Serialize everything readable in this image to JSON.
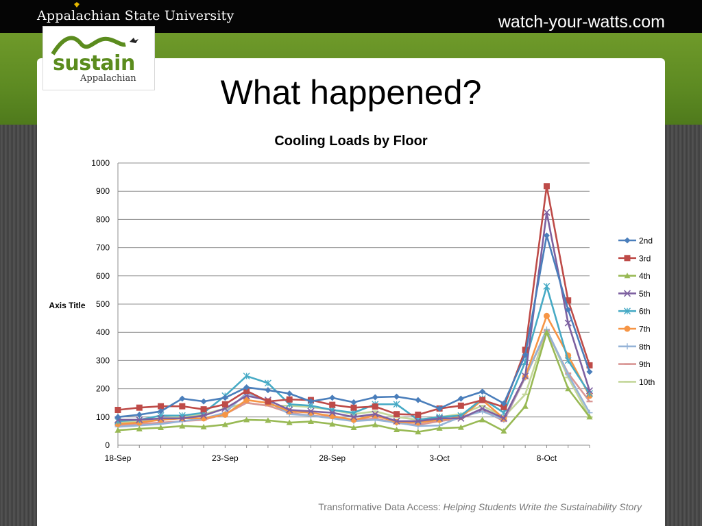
{
  "header": {
    "university": "Appalachian State University",
    "site": "watch-your-watts.com"
  },
  "logo": {
    "word": "sustain",
    "sub": "Appalachian"
  },
  "slide": {
    "title": "What happened?",
    "footer_regular": "Transformative Data Access: ",
    "footer_italic": "Helping Students Write the Sustainability Story"
  },
  "colors": {
    "top_bar": "#050505",
    "green_band": "#5d8a22",
    "logo_green": "#5b8c1e"
  },
  "chart_data": {
    "type": "line",
    "title": "Cooling Loads by Floor",
    "ylabel": "Axis Title",
    "xlabel": "",
    "ylim": [
      0,
      1000
    ],
    "yticks": [
      0,
      100,
      200,
      300,
      400,
      500,
      600,
      700,
      800,
      900,
      1000
    ],
    "grid": true,
    "legend": "right",
    "x": [
      "18-Sep",
      "19-Sep",
      "20-Sep",
      "21-Sep",
      "22-Sep",
      "23-Sep",
      "24-Sep",
      "25-Sep",
      "26-Sep",
      "27-Sep",
      "28-Sep",
      "29-Sep",
      "30-Sep",
      "1-Oct",
      "2-Oct",
      "3-Oct",
      "4-Oct",
      "5-Oct",
      "6-Oct",
      "7-Oct",
      "8-Oct",
      "9-Oct",
      "10-Oct"
    ],
    "xtick_labels": [
      "18-Sep",
      "23-Sep",
      "28-Sep",
      "3-Oct",
      "8-Oct"
    ],
    "series": [
      {
        "name": "2nd",
        "color": "#4a7ebb",
        "marker": "diamond",
        "values": [
          100,
          108,
          120,
          165,
          155,
          168,
          205,
          195,
          183,
          155,
          168,
          152,
          170,
          172,
          160,
          130,
          165,
          190,
          148,
          320,
          743,
          480,
          260
        ]
      },
      {
        "name": "3rd",
        "color": "#be4b48",
        "marker": "square",
        "values": [
          125,
          133,
          138,
          138,
          127,
          145,
          193,
          155,
          162,
          160,
          143,
          133,
          137,
          110,
          108,
          130,
          140,
          160,
          135,
          338,
          918,
          513,
          283
        ]
      },
      {
        "name": "4th",
        "color": "#98b954",
        "marker": "triangle",
        "values": [
          53,
          58,
          62,
          68,
          65,
          73,
          90,
          88,
          80,
          84,
          75,
          62,
          72,
          55,
          47,
          60,
          63,
          90,
          50,
          138,
          400,
          200,
          100
        ]
      },
      {
        "name": "5th",
        "color": "#7d60a0",
        "marker": "x",
        "values": [
          90,
          90,
          95,
          95,
          105,
          130,
          175,
          160,
          125,
          120,
          115,
          100,
          110,
          85,
          85,
          95,
          95,
          130,
          95,
          245,
          825,
          433,
          193
        ]
      },
      {
        "name": "6th",
        "color": "#46aac5",
        "marker": "star",
        "values": [
          85,
          90,
          105,
          105,
          115,
          175,
          245,
          220,
          145,
          140,
          125,
          115,
          145,
          145,
          90,
          100,
          105,
          165,
          115,
          295,
          563,
          300,
          183
        ]
      },
      {
        "name": "7th",
        "color": "#f69545",
        "marker": "circle",
        "values": [
          75,
          80,
          90,
          95,
          95,
          108,
          160,
          150,
          120,
          115,
          103,
          90,
          105,
          82,
          80,
          90,
          100,
          160,
          95,
          243,
          458,
          318,
          175
        ]
      },
      {
        "name": "8th",
        "color": "#95b3d7",
        "marker": "plus",
        "values": [
          65,
          70,
          75,
          85,
          95,
          115,
          185,
          155,
          110,
          105,
          95,
          85,
          90,
          80,
          68,
          70,
          100,
          120,
          90,
          240,
          410,
          250,
          115
        ]
      },
      {
        "name": "9th",
        "color": "#d99694",
        "marker": "dash",
        "values": [
          70,
          75,
          80,
          85,
          90,
          110,
          150,
          140,
          115,
          105,
          100,
          88,
          95,
          78,
          72,
          85,
          95,
          125,
          85,
          240,
          405,
          255,
          155
        ]
      },
      {
        "name": "10th",
        "color": "#c4d79b",
        "marker": "dash",
        "values": [
          80,
          85,
          95,
          100,
          110,
          130,
          150,
          140,
          140,
          135,
          125,
          110,
          120,
          100,
          90,
          100,
          110,
          140,
          100,
          180,
          410,
          240,
          100
        ]
      }
    ]
  }
}
